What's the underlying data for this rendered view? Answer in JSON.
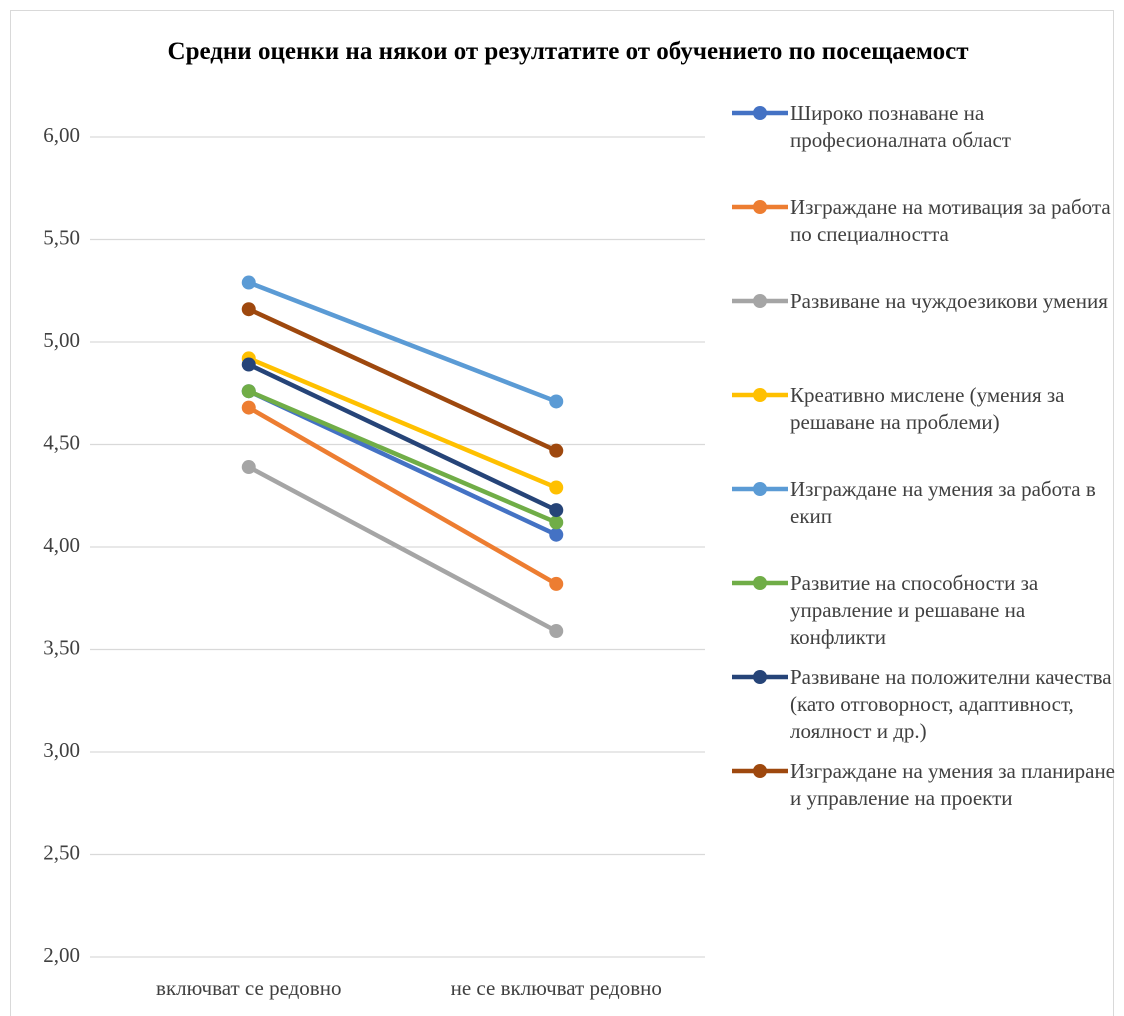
{
  "chart_data": {
    "type": "line",
    "title": "Средни оценки на някои от резултатите от обучението по посещаемост",
    "categories": [
      "включват се редовно",
      "не се включват редовно"
    ],
    "series": [
      {
        "name": "Широко познаване на професионалната област",
        "color": "#4472c4",
        "values": [
          4.76,
          4.06
        ]
      },
      {
        "name": "Изграждане на мотивация за работа по специалността",
        "color": "#ed7d31",
        "values": [
          4.68,
          3.82
        ]
      },
      {
        "name": "Развиване на чуждоезикови умения",
        "color": "#a5a5a5",
        "values": [
          4.39,
          3.59
        ]
      },
      {
        "name": "Креативно мислене (умения за решаване на проблеми)",
        "color": "#ffc000",
        "values": [
          4.92,
          4.29
        ]
      },
      {
        "name": "Изграждане на умения за работа в екип",
        "color": "#5b9bd5",
        "values": [
          5.29,
          4.71
        ]
      },
      {
        "name": "Развитие на способности за управление и решаване на конфликти",
        "color": "#70ad47",
        "values": [
          4.76,
          4.12
        ]
      },
      {
        "name": "Развиване на положителни качества (като отговорност, адаптивност, лоялност и др.)",
        "color": "#264478",
        "values": [
          4.89,
          4.18
        ]
      },
      {
        "name": "Изграждане на умения за планиране и управление на проекти",
        "color": "#9e480e",
        "values": [
          5.16,
          4.47
        ]
      }
    ],
    "ylim": [
      2,
      6
    ],
    "yticks": [
      {
        "value": 2,
        "label": "2,00"
      },
      {
        "value": 2.5,
        "label": "2,50"
      },
      {
        "value": 3,
        "label": "3,00"
      },
      {
        "value": 3.5,
        "label": "3,50"
      },
      {
        "value": 4,
        "label": "4,00"
      },
      {
        "value": 4.5,
        "label": "4,50"
      },
      {
        "value": 5,
        "label": "5,00"
      },
      {
        "value": 5.5,
        "label": "5,50"
      },
      {
        "value": 6,
        "label": "6,00"
      }
    ],
    "grid": true,
    "legend": "right"
  }
}
